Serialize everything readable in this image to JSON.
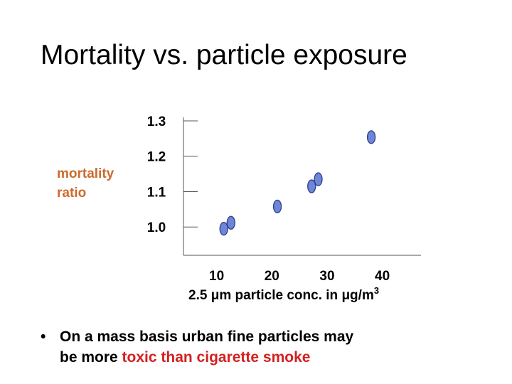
{
  "slide": {
    "title": "Mortality vs. particle exposure",
    "bullet_marker": "•",
    "bullet_text_1": "On a mass basis urban fine particles may",
    "bullet_text_2": "be more",
    "bullet_highlight": "toxic than cigarette smoke"
  },
  "colors": {
    "ylabel": "#cc6a2c",
    "highlight": "#d42020",
    "marker_fill": "#6f86d6",
    "marker_stroke": "#2c3f8f"
  },
  "chart_data": {
    "type": "scatter",
    "title": "",
    "ylabel_line1": "mortality",
    "ylabel_line2": "ratio",
    "xlabel_prefix": "2.5",
    "xlabel_micro": "μ",
    "xlabel_middle": "m particle conc. in",
    "xlabel_ugm": "μg/m",
    "xlabel_exp": "3",
    "x_ticks": [
      "10",
      "20",
      "30",
      "40"
    ],
    "x_tick_values": [
      10,
      20,
      30,
      40
    ],
    "y_ticks": [
      "1.0",
      "1.1",
      "1.2",
      "1.3"
    ],
    "y_tick_values": [
      1.0,
      1.1,
      1.2,
      1.3
    ],
    "xlim": [
      4,
      47
    ],
    "ylim": [
      0.92,
      1.31
    ],
    "grid": false,
    "points": [
      {
        "x": 11.3,
        "y": 0.995
      },
      {
        "x": 12.6,
        "y": 1.012
      },
      {
        "x": 21.0,
        "y": 1.058
      },
      {
        "x": 27.2,
        "y": 1.115
      },
      {
        "x": 28.4,
        "y": 1.135
      },
      {
        "x": 38.0,
        "y": 1.254
      }
    ]
  }
}
